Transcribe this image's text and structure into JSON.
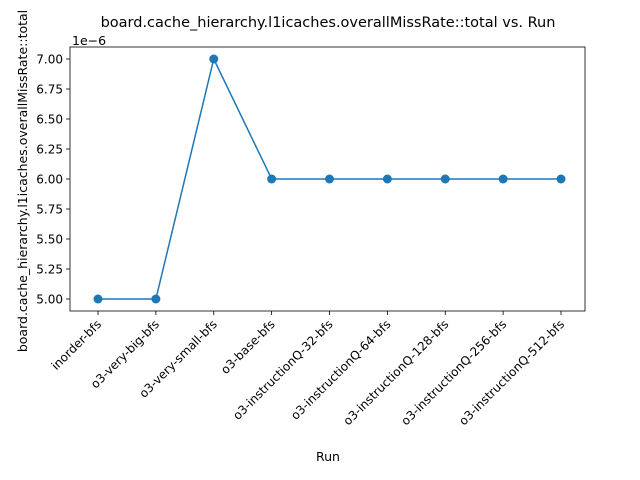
{
  "chart_data": {
    "type": "line",
    "title": "board.cache_hierarchy.l1icaches.overallMissRate::total vs. Run",
    "xlabel": "Run",
    "ylabel": "board.cache_hierarchy.l1icaches.overallMissRate::total",
    "offset_label": "1e−6",
    "categories": [
      "inorder-bfs",
      "o3-very-big-bfs",
      "o3-very-small-bfs",
      "o3-base-bfs",
      "o3-instructionQ-32-bfs",
      "o3-instructionQ-64-bfs",
      "o3-instructionQ-128-bfs",
      "o3-instructionQ-256-bfs",
      "o3-instructionQ-512-bfs"
    ],
    "series": [
      {
        "values": [
          5e-06,
          5e-06,
          7e-06,
          6e-06,
          6e-06,
          6e-06,
          6e-06,
          6e-06,
          6e-06
        ]
      }
    ],
    "yticks": [
      "5.00",
      "5.25",
      "5.50",
      "5.75",
      "6.00",
      "6.25",
      "6.50",
      "6.75",
      "7.00"
    ],
    "ylim": [
      4.9e-06,
      7.1e-06
    ],
    "grid": false,
    "line_color": "#1f77b4"
  }
}
